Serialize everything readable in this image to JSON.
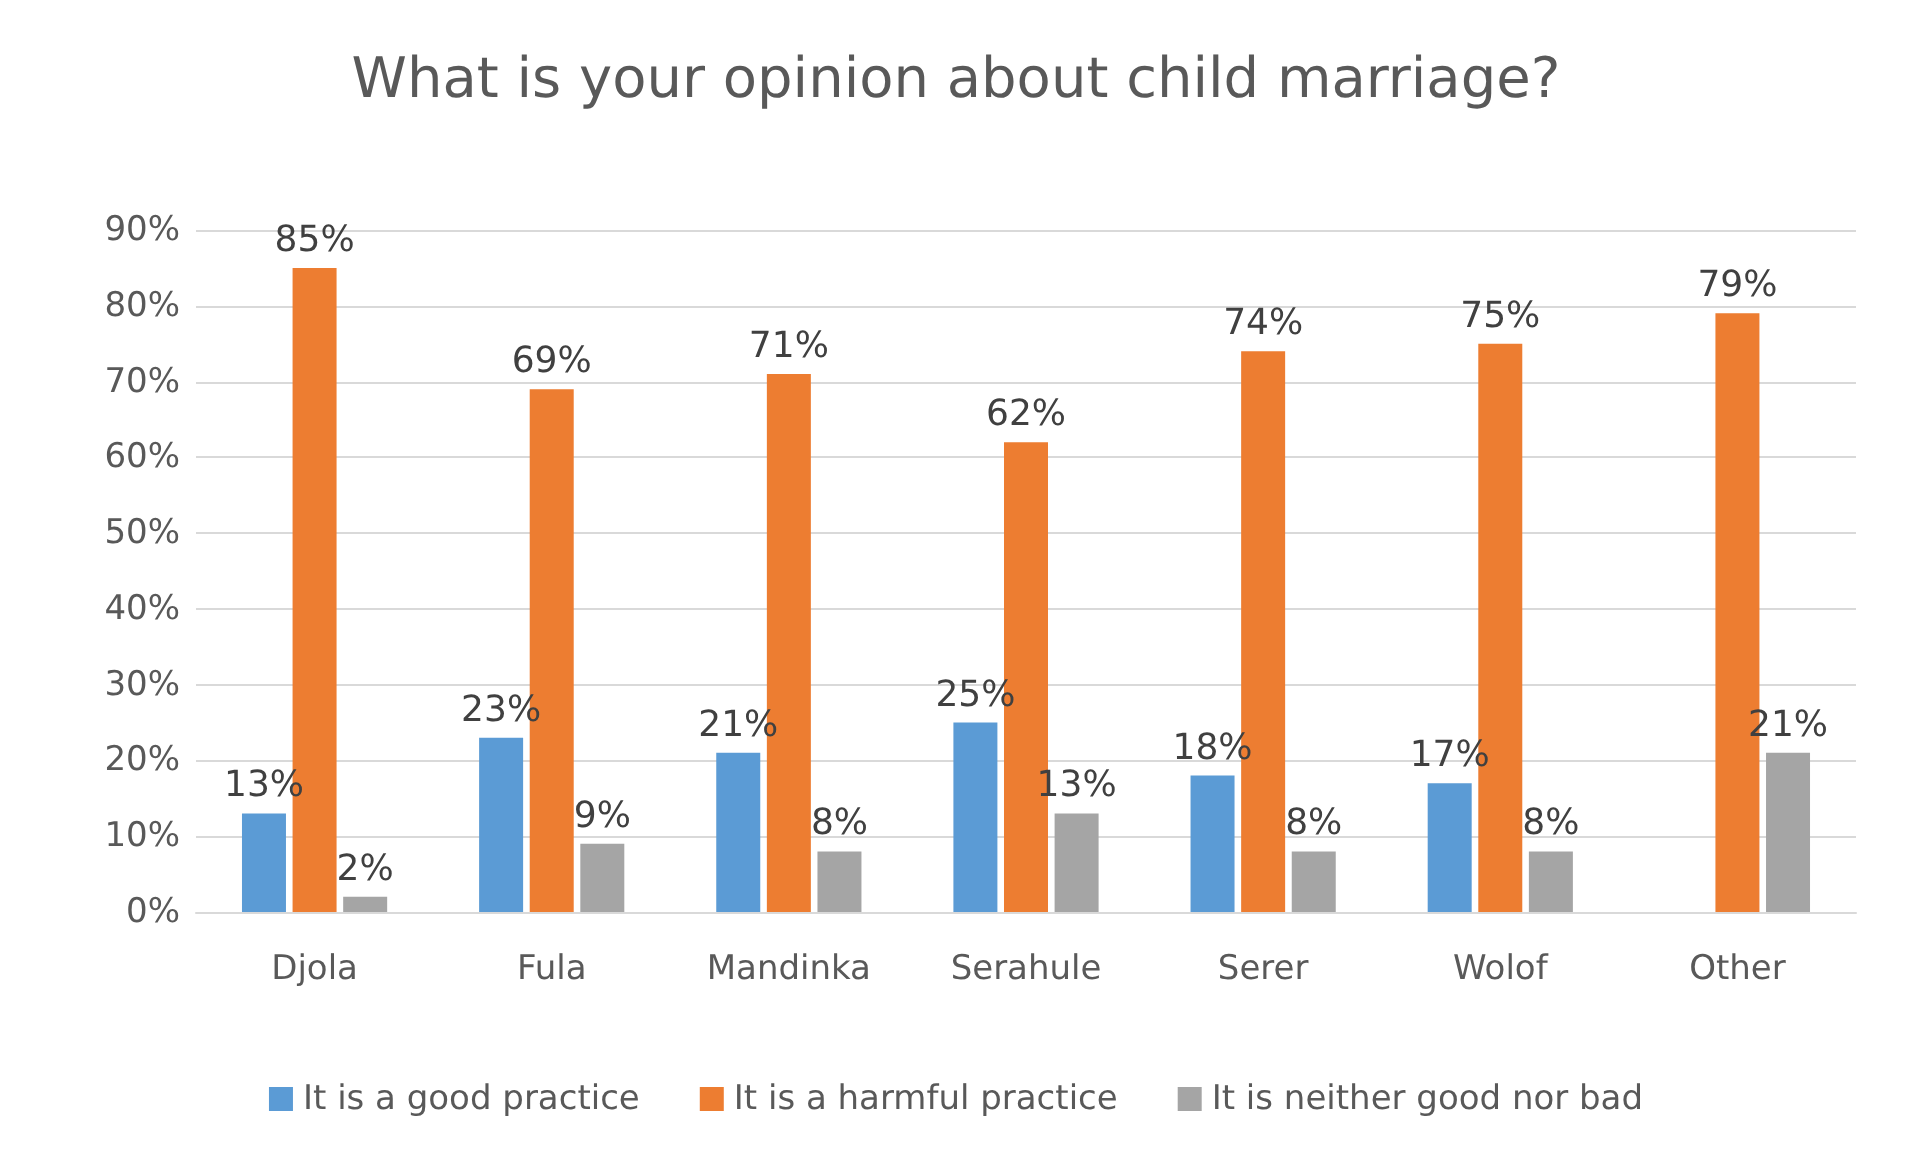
{
  "chart_data": {
    "type": "bar",
    "title": "What is your opinion about child marriage?",
    "categories": [
      "Djola",
      "Fula",
      "Mandinka",
      "Serahule",
      "Serer",
      "Wolof",
      "Other"
    ],
    "series": [
      {
        "name": "It is a good practice",
        "color": "#5b9bd5",
        "values": [
          13,
          23,
          21,
          25,
          18,
          17,
          null
        ],
        "value_labels": [
          "13%",
          "23%",
          "21%",
          "25%",
          "18%",
          "17%",
          null
        ]
      },
      {
        "name": "It is a harmful practice",
        "color": "#ed7d31",
        "values": [
          85,
          69,
          71,
          62,
          74,
          75,
          79
        ],
        "value_labels": [
          "85%",
          "69%",
          "71%",
          "62%",
          "74%",
          "75%",
          "79%"
        ]
      },
      {
        "name": "It is neither good nor bad",
        "color": "#a5a5a5",
        "values": [
          2,
          9,
          8,
          13,
          8,
          8,
          21
        ],
        "value_labels": [
          "2%",
          "9%",
          "8%",
          "13%",
          "8%",
          "8%",
          "21%"
        ]
      }
    ],
    "ylim": [
      0,
      90
    ],
    "yticks": [
      {
        "value": 0,
        "label": "0%"
      },
      {
        "value": 10,
        "label": "10%"
      },
      {
        "value": 20,
        "label": "20%"
      },
      {
        "value": 30,
        "label": "30%"
      },
      {
        "value": 40,
        "label": "40%"
      },
      {
        "value": 50,
        "label": "50%"
      },
      {
        "value": 60,
        "label": "60%"
      },
      {
        "value": 70,
        "label": "70%"
      },
      {
        "value": 80,
        "label": "80%"
      },
      {
        "value": 90,
        "label": "90%"
      }
    ],
    "grid": "y",
    "legend": "bottom"
  }
}
